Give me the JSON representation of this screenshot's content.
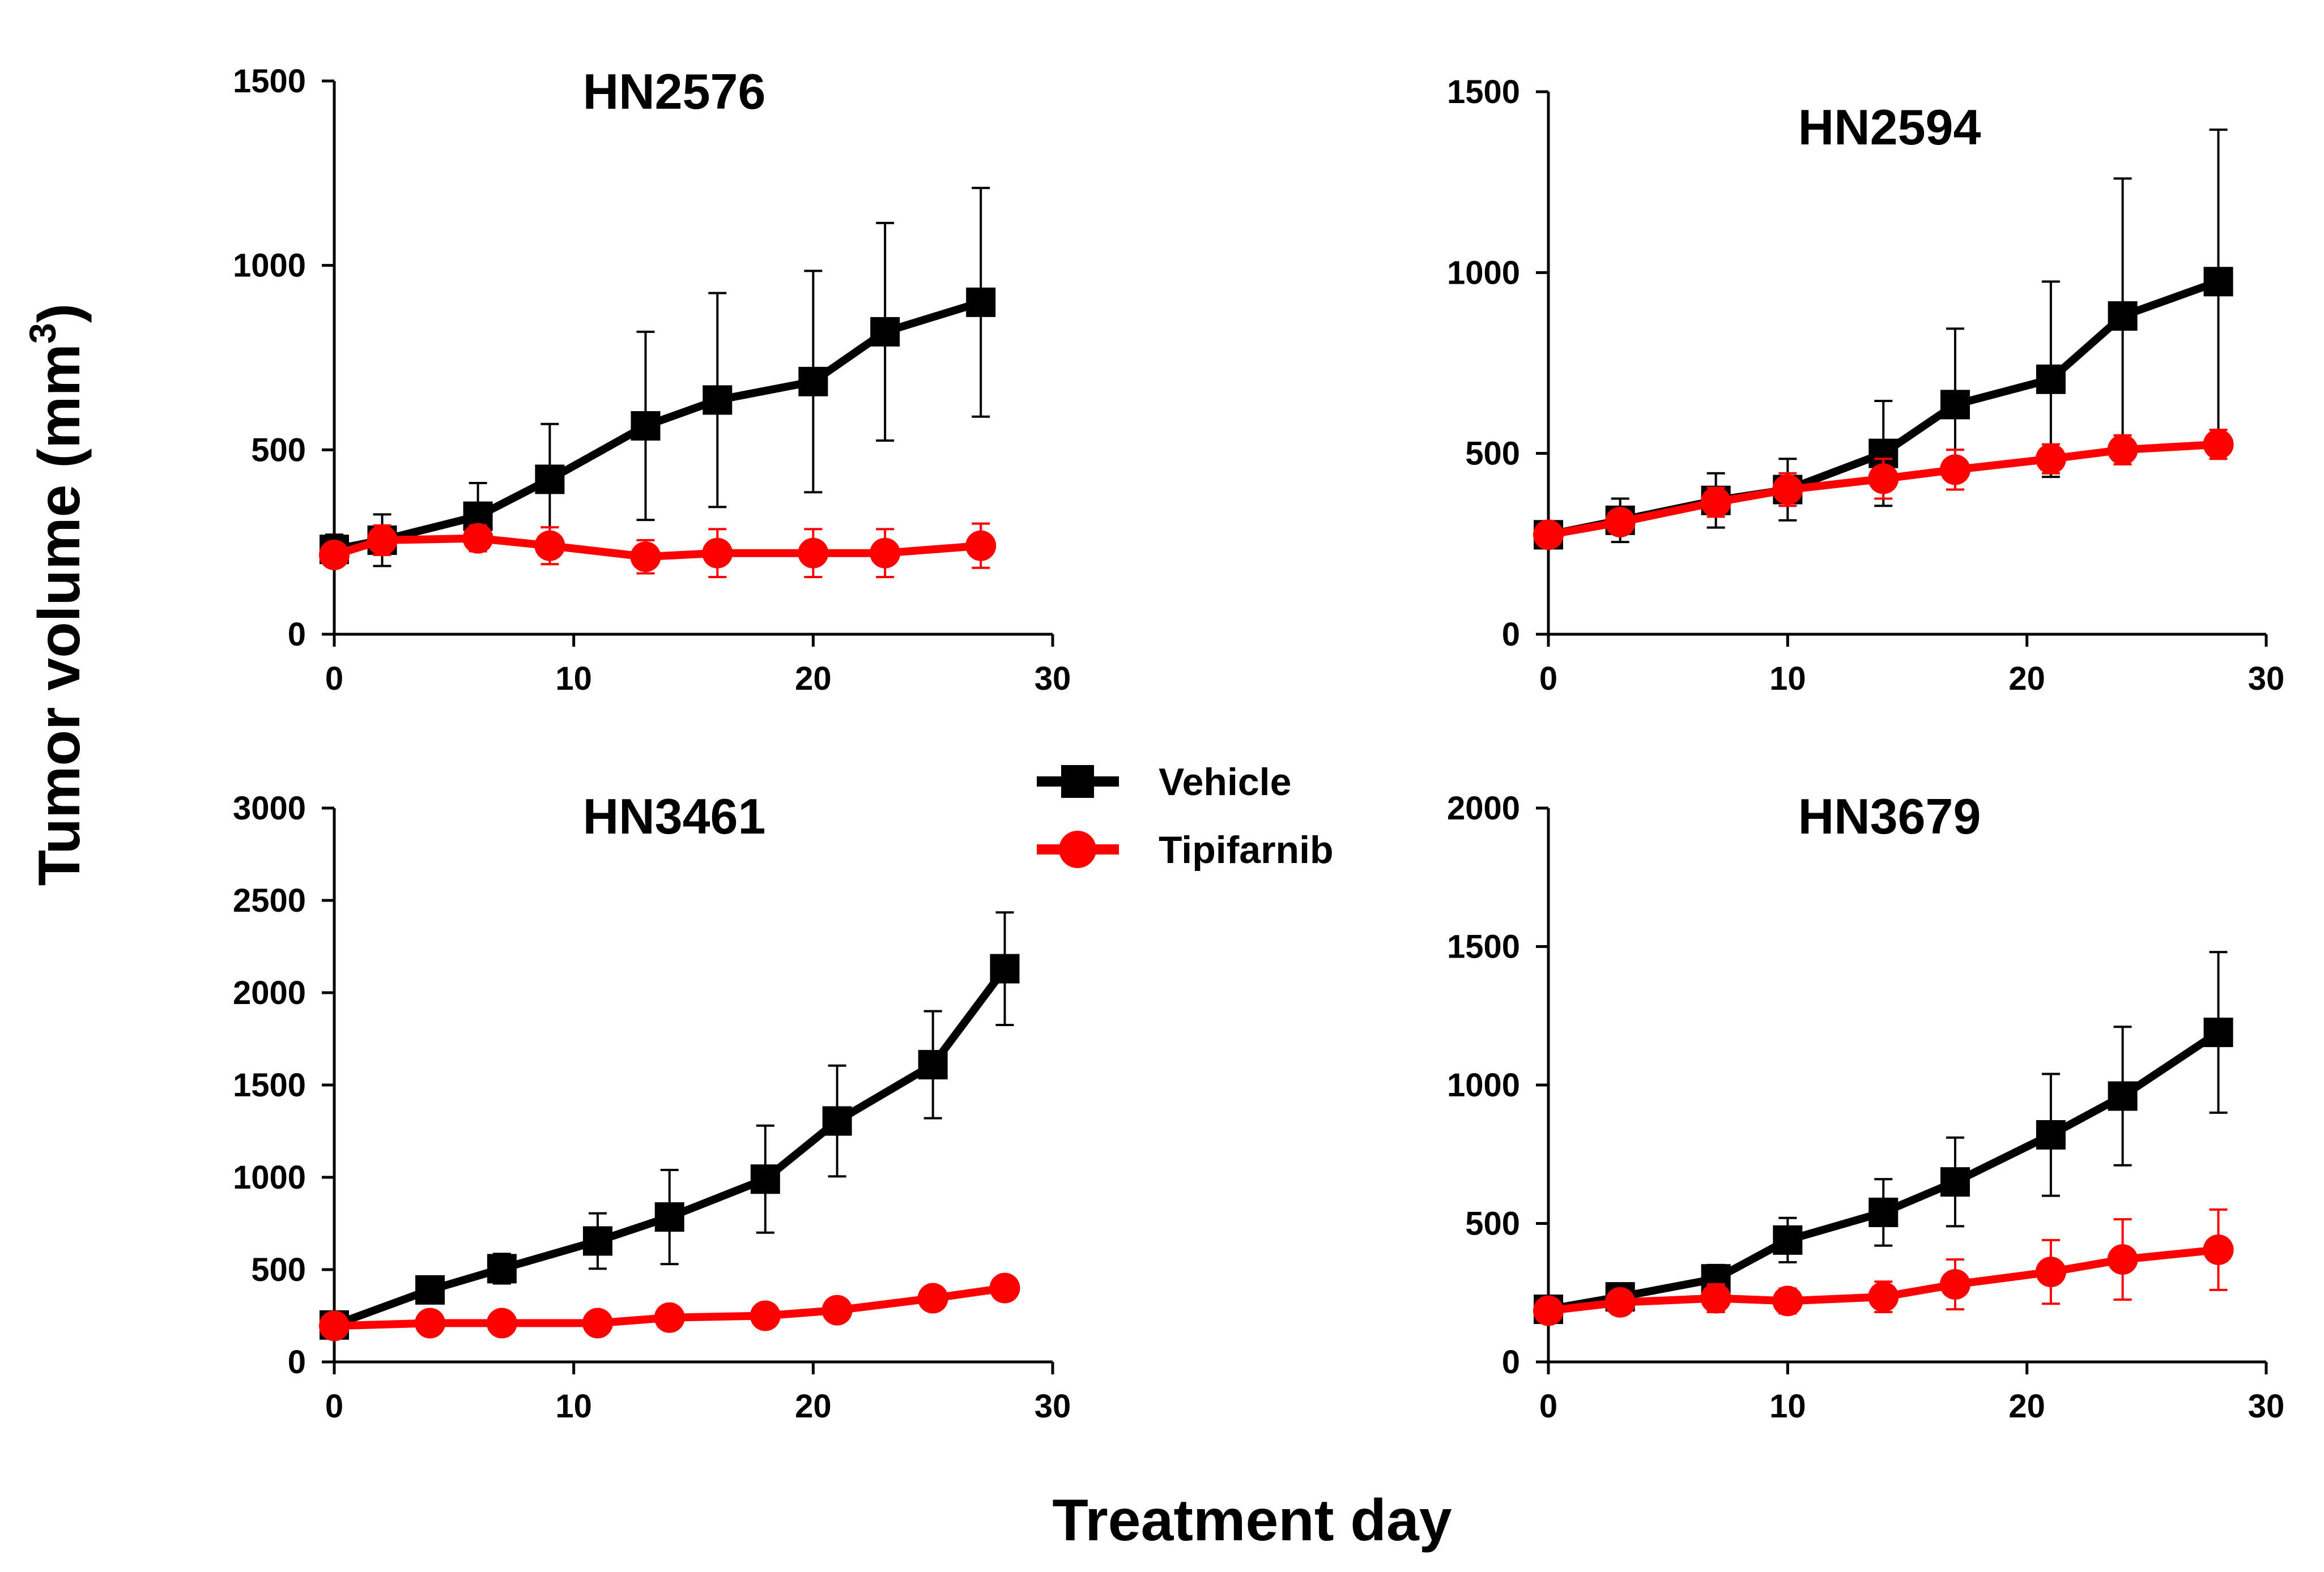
{
  "figure": {
    "ylabel": "Tumor volume (mm",
    "ylabel_sup": "3",
    "ylabel_end": ")",
    "xlabel": "Treatment day",
    "legend": [
      {
        "name": "Vehicle",
        "color": "#000000",
        "marker": "square"
      },
      {
        "name": "Tipifarnib",
        "color": "#ff0000",
        "marker": "circle"
      }
    ]
  },
  "chart_data": [
    {
      "type": "line",
      "title": "HN2576",
      "xlim": [
        0,
        30
      ],
      "xticks": [
        0,
        10,
        20,
        30
      ],
      "ylim": [
        0,
        1500
      ],
      "yticks": [
        0,
        500,
        1000,
        1500
      ],
      "series": [
        {
          "name": "Vehicle",
          "color": "#000000",
          "x": [
            0,
            2,
            6,
            9,
            13,
            16,
            20,
            23,
            27
          ],
          "y": [
            230,
            255,
            320,
            420,
            565,
            635,
            685,
            820,
            900
          ],
          "err": [
            40,
            70,
            90,
            150,
            255,
            290,
            300,
            295,
            310
          ]
        },
        {
          "name": "Tipifarnib",
          "color": "#ff0000",
          "x": [
            0,
            2,
            6,
            9,
            13,
            16,
            20,
            23,
            27
          ],
          "y": [
            215,
            255,
            260,
            240,
            210,
            220,
            220,
            220,
            240
          ],
          "err": [
            30,
            40,
            35,
            50,
            45,
            65,
            65,
            65,
            60
          ]
        }
      ]
    },
    {
      "type": "line",
      "title": "HN2594",
      "xlim": [
        0,
        30
      ],
      "xticks": [
        0,
        10,
        20,
        30
      ],
      "ylim": [
        0,
        1500
      ],
      "yticks": [
        0,
        500,
        1000,
        1500
      ],
      "series": [
        {
          "name": "Vehicle",
          "color": "#000000",
          "x": [
            0,
            3,
            7,
            10,
            14,
            17,
            21,
            24,
            28
          ],
          "y": [
            275,
            315,
            370,
            400,
            500,
            635,
            705,
            880,
            975
          ],
          "err": [
            30,
            60,
            75,
            85,
            145,
            210,
            270,
            380,
            420
          ]
        },
        {
          "name": "Tipifarnib",
          "color": "#ff0000",
          "x": [
            0,
            3,
            7,
            10,
            14,
            17,
            21,
            24,
            28
          ],
          "y": [
            275,
            310,
            365,
            400,
            430,
            455,
            485,
            510,
            525
          ],
          "err": [
            25,
            30,
            40,
            45,
            55,
            55,
            40,
            40,
            40
          ]
        }
      ]
    },
    {
      "type": "line",
      "title": "HN3461",
      "xlim": [
        0,
        30
      ],
      "xticks": [
        0,
        10,
        20,
        30
      ],
      "ylim": [
        0,
        3000
      ],
      "yticks": [
        0,
        500,
        1000,
        1500,
        2000,
        2500,
        3000
      ],
      "series": [
        {
          "name": "Vehicle",
          "color": "#000000",
          "x": [
            0,
            4,
            7,
            11,
            14,
            18,
            21,
            25,
            28
          ],
          "y": [
            200,
            390,
            505,
            655,
            785,
            990,
            1305,
            1610,
            2130
          ],
          "err": [
            30,
            50,
            80,
            150,
            255,
            290,
            300,
            290,
            305
          ]
        },
        {
          "name": "Tipifarnib",
          "color": "#ff0000",
          "x": [
            0,
            4,
            7,
            11,
            14,
            18,
            21,
            25,
            28
          ],
          "y": [
            195,
            210,
            210,
            210,
            240,
            250,
            280,
            345,
            400
          ],
          "err": [
            20,
            20,
            20,
            20,
            30,
            30,
            30,
            40,
            45
          ]
        }
      ]
    },
    {
      "type": "line",
      "title": "HN3679",
      "xlim": [
        0,
        30
      ],
      "xticks": [
        0,
        10,
        20,
        30
      ],
      "ylim": [
        0,
        2000
      ],
      "yticks": [
        0,
        500,
        1000,
        1500,
        2000
      ],
      "series": [
        {
          "name": "Vehicle",
          "color": "#000000",
          "x": [
            0,
            3,
            7,
            10,
            14,
            17,
            21,
            24,
            28
          ],
          "y": [
            190,
            235,
            300,
            440,
            540,
            650,
            820,
            960,
            1190
          ],
          "err": [
            30,
            30,
            50,
            80,
            120,
            160,
            220,
            250,
            290
          ]
        },
        {
          "name": "Tipifarnib",
          "color": "#ff0000",
          "x": [
            0,
            3,
            7,
            10,
            14,
            17,
            21,
            24,
            28
          ],
          "y": [
            185,
            215,
            230,
            220,
            235,
            280,
            325,
            370,
            405
          ],
          "err": [
            25,
            40,
            50,
            45,
            55,
            90,
            115,
            145,
            145
          ]
        }
      ]
    }
  ]
}
